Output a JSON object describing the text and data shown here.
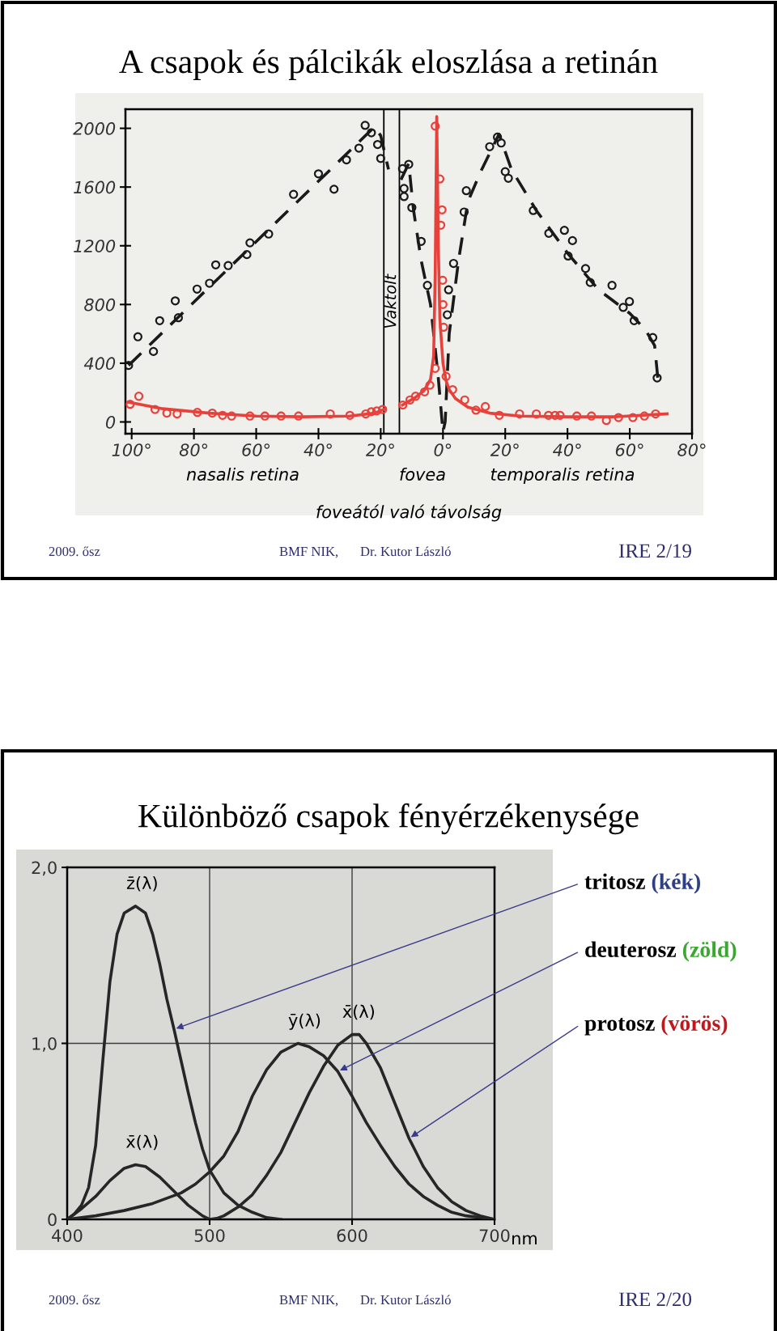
{
  "chart_data": [
    {
      "type": "scatter",
      "title": "A csapok és pálcikák eloszlása a retinán",
      "xlabel": "foveától való távolság",
      "xlim": [
        -102,
        80
      ],
      "ylim": [
        -80,
        2130
      ],
      "xticks": [
        {
          "value": -100,
          "label": "100°"
        },
        {
          "value": -80,
          "label": "80°"
        },
        {
          "value": -60,
          "label": "60°"
        },
        {
          "value": -40,
          "label": "40°"
        },
        {
          "value": -20,
          "label": "20°"
        },
        {
          "value": 0,
          "label": "0°"
        },
        {
          "value": 20,
          "label": "20°"
        },
        {
          "value": 40,
          "label": "40°"
        },
        {
          "value": 60,
          "label": "60°"
        },
        {
          "value": 80,
          "label": "80°"
        }
      ],
      "yticks": [
        0,
        400,
        800,
        1200,
        1600,
        2000
      ],
      "series": [
        {
          "type": "scatter",
          "marker": "circle",
          "color": "#1a1a1a",
          "x": [
            -101,
            -98,
            -93,
            -91,
            -86,
            -85,
            -79,
            -75,
            -73,
            -69,
            -63,
            -62,
            -56,
            -48,
            -40,
            -35,
            -31,
            -27,
            -25,
            -23,
            -21,
            -20,
            -13,
            -11,
            -12.5,
            -12.5,
            -10,
            -7,
            -5,
            1.4,
            1.8,
            3.4,
            6.8,
            7.5,
            15,
            17.5,
            18.7,
            20,
            21,
            29,
            34,
            39,
            41.6,
            40.2,
            45.8,
            47.3,
            54.3,
            59.9,
            57.9,
            61.4,
            67.4,
            68.8
          ],
          "values": [
            385,
            580,
            480,
            690,
            825,
            710,
            905,
            945,
            1070,
            1065,
            1140,
            1220,
            1280,
            1550,
            1690,
            1585,
            1785,
            1865,
            2020,
            1970,
            1890,
            1795,
            1725,
            1755,
            1590,
            1535,
            1460,
            1230,
            930,
            730,
            900,
            1080,
            1430,
            1575,
            1875,
            1940,
            1900,
            1705,
            1660,
            1440,
            1285,
            1305,
            1235,
            1130,
            1045,
            950,
            930,
            820,
            780,
            690,
            575,
            300
          ]
        },
        {
          "type": "line",
          "line_style": "dashed",
          "color": "#1a1a1a",
          "x": [
            -101,
            -22,
            -20,
            -17.5,
            -15,
            -13.5,
            -11,
            -9.5,
            -7,
            -4,
            -1.5,
            0,
            0.7,
            2,
            5,
            8,
            12,
            18,
            22,
            30,
            40,
            50,
            60,
            65,
            68,
            69
          ],
          "values": [
            385,
            2010,
            1950,
            1720,
            null,
            1650,
            1760,
            1450,
            1100,
            800,
            300,
            -70,
            0,
            600,
            1100,
            1500,
            1700,
            1960,
            1720,
            1440,
            1150,
            900,
            740,
            630,
            520,
            300
          ]
        },
        {
          "type": "scatter",
          "marker": "circle",
          "color": "#e8413c",
          "x": [
            -100.5,
            -97.7,
            -92.5,
            -88.7,
            -85.4,
            -78.9,
            -74.1,
            -70.8,
            -67.9,
            -62,
            -57.2,
            -52,
            -46.4,
            -36.2,
            -29.9,
            -24.8,
            -23,
            -21.3,
            -19.4,
            -12.9,
            -10.6,
            -8.8,
            -5.9,
            -4.2,
            -2.5,
            -2.5,
            -1,
            -0.3,
            -0.7,
            -0.1,
            0,
            0.2,
            1,
            3.1,
            7,
            10.6,
            13.6,
            18.1,
            24.6,
            30,
            33.9,
            36,
            37.6,
            43,
            47.7,
            52.5,
            56.4,
            61,
            64.7,
            68.3
          ],
          "values": [
            120,
            175,
            85,
            60,
            55,
            65,
            60,
            45,
            40,
            40,
            40,
            40,
            40,
            55,
            45,
            55,
            70,
            75,
            85,
            115,
            150,
            175,
            205,
            250,
            365,
            2015,
            1655,
            1445,
            1340,
            965,
            800,
            645,
            310,
            220,
            150,
            80,
            105,
            45,
            55,
            55,
            45,
            45,
            45,
            40,
            40,
            10,
            30,
            30,
            40,
            55
          ]
        },
        {
          "type": "line",
          "line_style": "solid",
          "color": "#e8413c",
          "x": [
            -101,
            -90,
            -75,
            -60,
            -45,
            -30,
            -22,
            -18.5,
            -15,
            -13,
            -9,
            -6,
            -4,
            -3,
            -2.5,
            -2,
            -1.5,
            -1,
            0,
            1,
            2,
            4,
            8,
            15,
            25,
            40,
            55,
            72
          ],
          "values": [
            135,
            90,
            60,
            40,
            35,
            40,
            60,
            90,
            null,
            115,
            165,
            215,
            290,
            450,
            1000,
            2080,
            1200,
            700,
            400,
            280,
            220,
            160,
            100,
            60,
            40,
            35,
            35,
            55
          ]
        }
      ],
      "bands": [
        {
          "axis": "x",
          "from": -19,
          "to": -14,
          "label": "Vaktolt"
        }
      ],
      "annotations": [
        "nasalis retina",
        "fovea",
        "temporalis retina",
        "2009. ősz",
        "BMF NIK,",
        "Dr. Kutor László",
        "IRE 2/19"
      ]
    },
    {
      "type": "line",
      "title": "Különböző csapok fényérzékenysége",
      "xlabel": "nm",
      "xlim": [
        400,
        700
      ],
      "ylim": [
        0,
        2.0
      ],
      "xticks": [
        400,
        500,
        600,
        700
      ],
      "yticks": [
        0,
        {
          "value": 1,
          "label": "1,0"
        },
        {
          "value": 2,
          "label": "2,0"
        }
      ],
      "grid": true,
      "series": [
        {
          "name": "z̄(λ)",
          "color": "#262626",
          "x": [
            400,
            405,
            410,
            415,
            420,
            425,
            430,
            435,
            440,
            448,
            455,
            460,
            465,
            470,
            475,
            480,
            485,
            490,
            495,
            500,
            510,
            520,
            530,
            540,
            550
          ],
          "values": [
            0,
            0.03,
            0.08,
            0.18,
            0.42,
            0.9,
            1.35,
            1.62,
            1.74,
            1.78,
            1.74,
            1.62,
            1.45,
            1.25,
            1.08,
            0.9,
            0.72,
            0.55,
            0.4,
            0.28,
            0.15,
            0.08,
            0.04,
            0.01,
            0
          ]
        },
        {
          "name": "x̄(λ)",
          "color": "#262626",
          "x": [
            400,
            410,
            420,
            430,
            440,
            448,
            455,
            465,
            475,
            485,
            495,
            500
          ],
          "values": [
            0,
            0.06,
            0.13,
            0.22,
            0.29,
            0.31,
            0.3,
            0.24,
            0.16,
            0.08,
            0.02,
            0
          ]
        },
        {
          "name": "ȳ(λ)",
          "color": "#262626",
          "x": [
            400,
            420,
            440,
            460,
            480,
            490,
            500,
            510,
            520,
            530,
            540,
            550,
            562,
            570,
            580,
            590,
            600,
            610,
            620,
            630,
            640,
            650,
            660,
            670,
            680,
            690,
            700
          ],
          "values": [
            0,
            0.02,
            0.05,
            0.09,
            0.15,
            0.2,
            0.27,
            0.36,
            0.5,
            0.7,
            0.85,
            0.95,
            1.0,
            0.98,
            0.93,
            0.84,
            0.7,
            0.55,
            0.42,
            0.3,
            0.2,
            0.13,
            0.08,
            0.04,
            0.02,
            0.01,
            0
          ]
        },
        {
          "name": "x̄(λ)",
          "color": "#262626",
          "x": [
            500,
            505,
            510,
            520,
            530,
            540,
            550,
            560,
            570,
            580,
            590,
            600,
            605,
            610,
            620,
            630,
            640,
            650,
            660,
            670,
            680,
            690,
            700
          ],
          "values": [
            0,
            0.005,
            0.02,
            0.07,
            0.14,
            0.25,
            0.38,
            0.55,
            0.72,
            0.87,
            0.99,
            1.05,
            1.05,
            1.0,
            0.86,
            0.66,
            0.46,
            0.3,
            0.18,
            0.1,
            0.05,
            0.02,
            0
          ]
        }
      ],
      "annotations": [
        {
          "text": "tritosz (kék)",
          "x": 475,
          "y": 1.08
        },
        {
          "text": "deuterosz (zöld)",
          "x": 590,
          "y": 0.84
        },
        {
          "text": "protosz (vörös)",
          "x": 640,
          "y": 0.46
        },
        "2009. ősz",
        "BMF NIK,",
        "Dr. Kutor László",
        "IRE 2/20"
      ]
    }
  ]
}
